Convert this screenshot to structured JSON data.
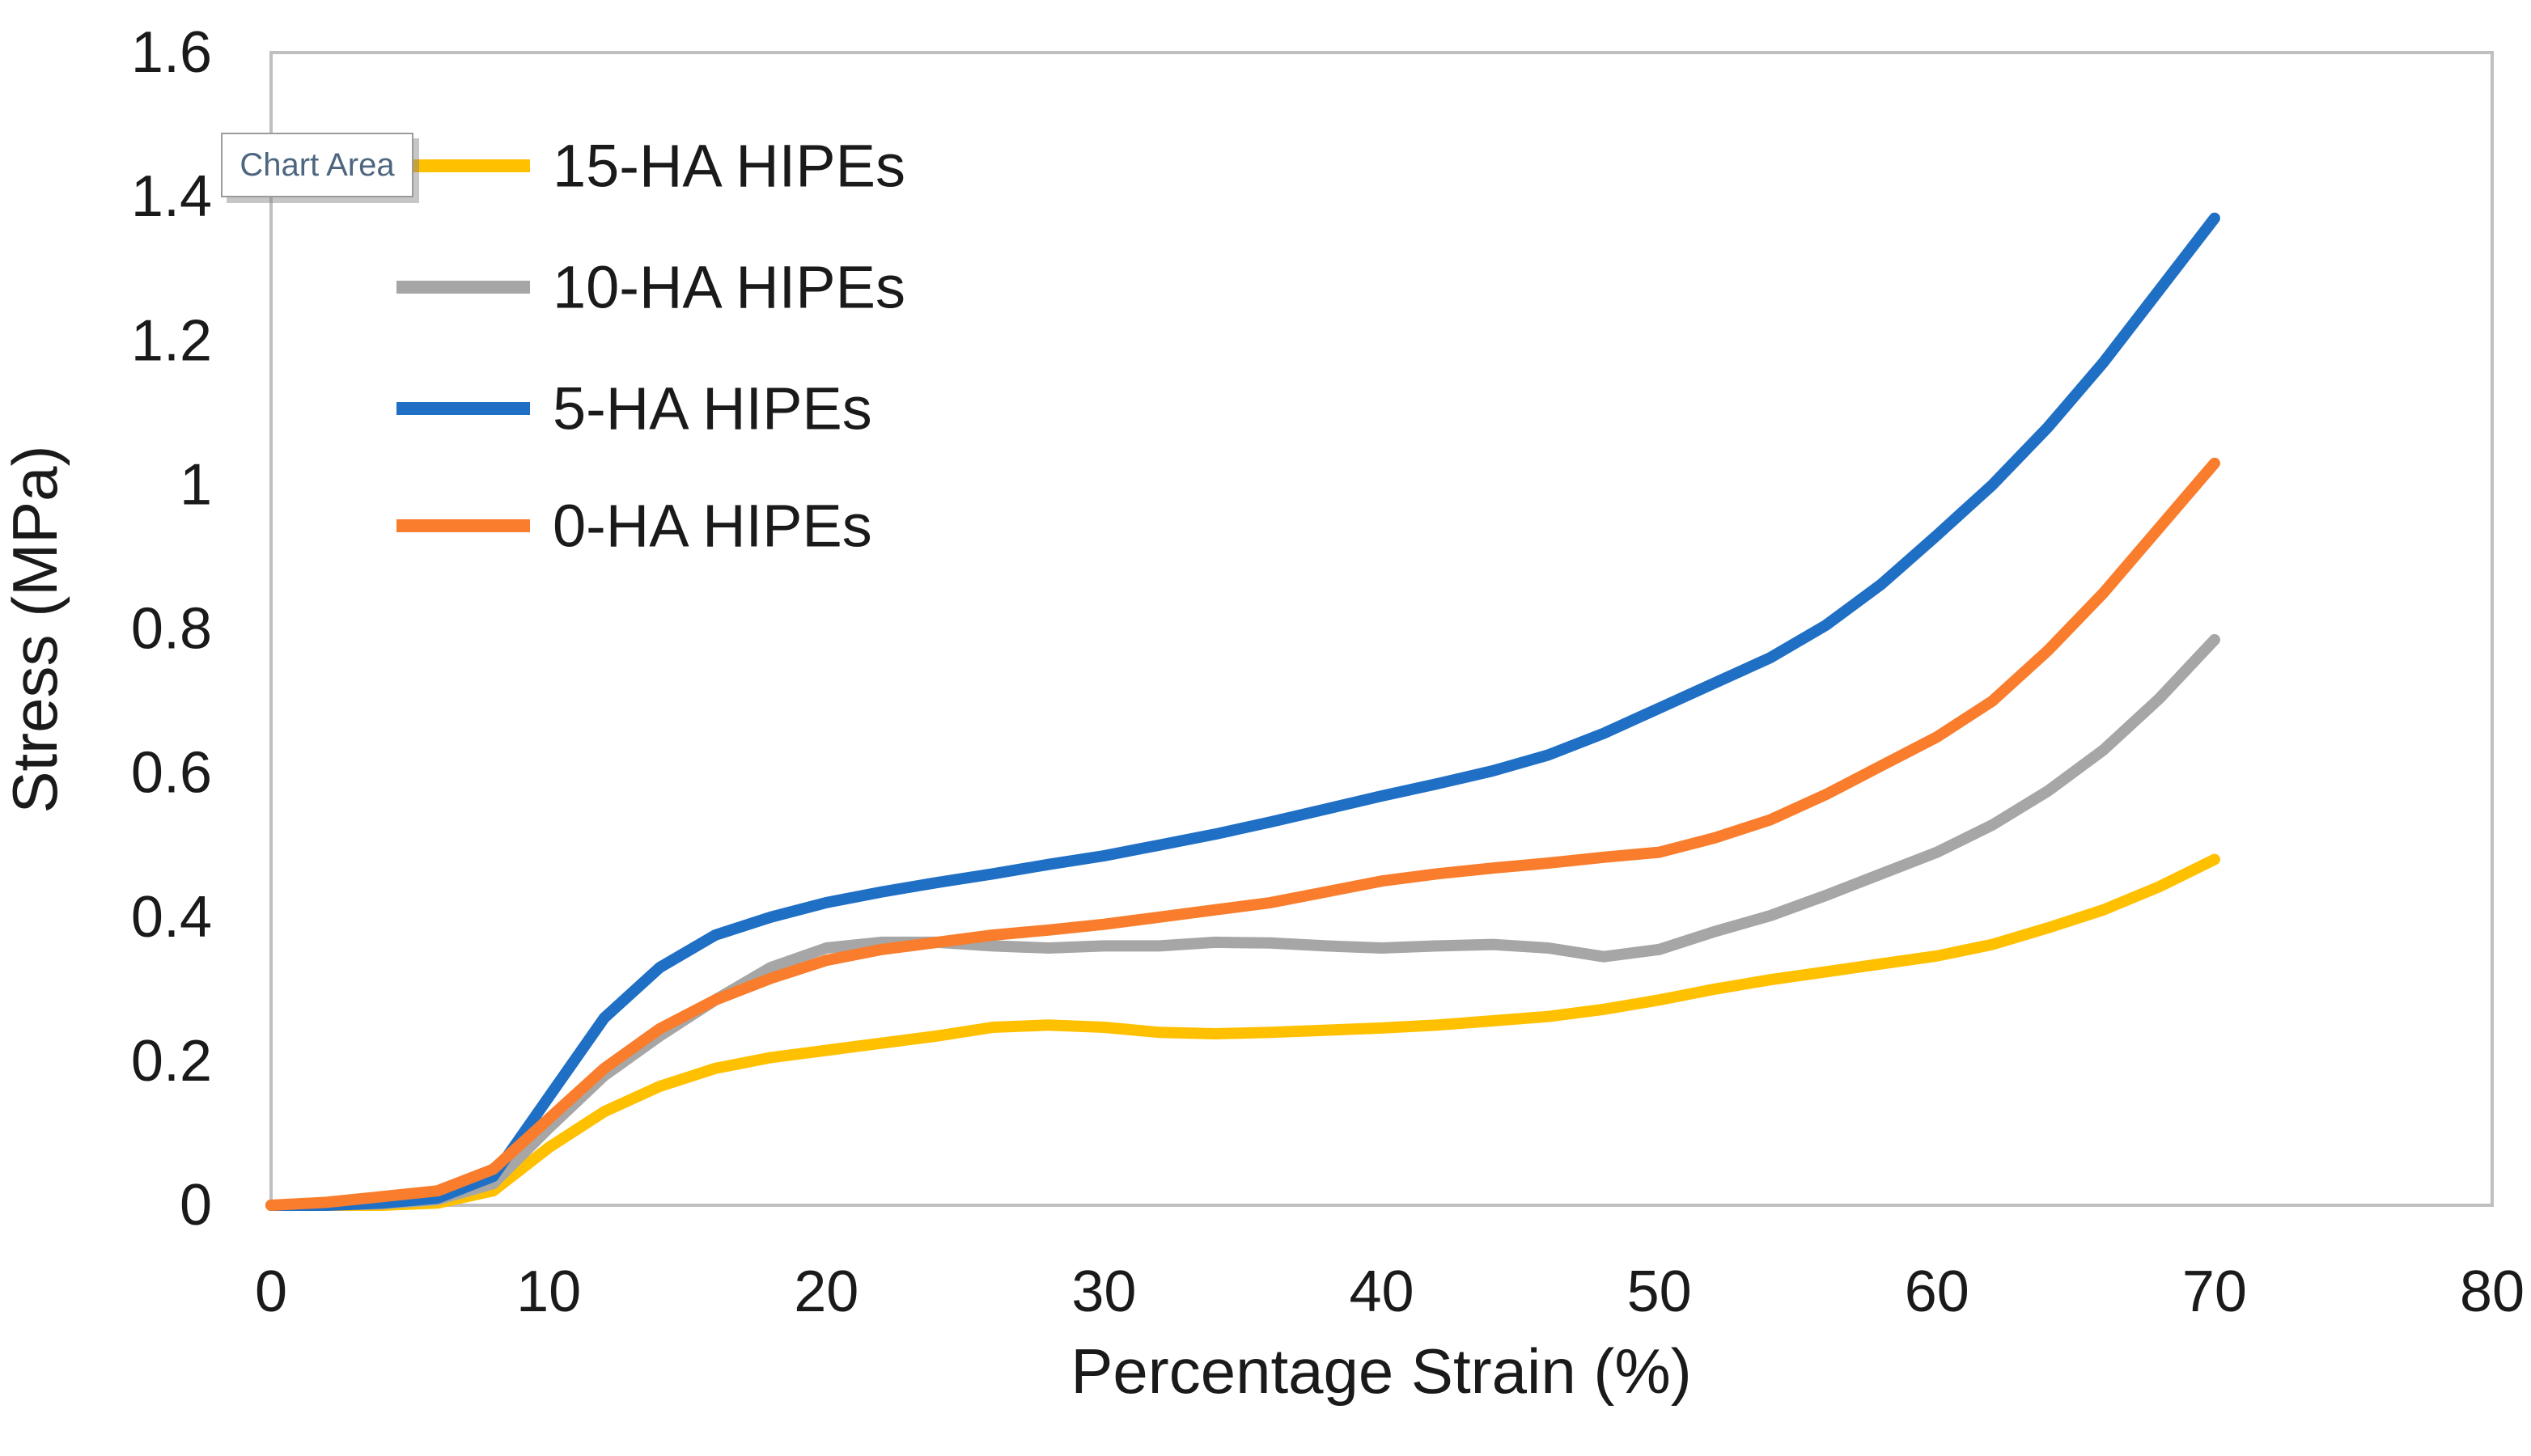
{
  "tooltip": {
    "label": "Chart Area"
  },
  "colors": {
    "frame": "#bfbfbf",
    "axis_text": "#1a1a1a",
    "tooltip_text": "#4d6680",
    "yellow": "#FFC000",
    "gray": "#A6A6A6",
    "blue": "#1F6FC5",
    "orange": "#F97D2C"
  },
  "chart_data": {
    "type": "line",
    "title": "",
    "xlabel": "Percentage Strain (%)",
    "ylabel": "Stress (MPa)",
    "xlim": [
      0,
      80
    ],
    "ylim": [
      0,
      1.6
    ],
    "xticks": [
      0,
      10,
      20,
      30,
      40,
      50,
      60,
      70,
      80
    ],
    "yticks": [
      0,
      0.2,
      0.4,
      0.6,
      0.8,
      1,
      1.2,
      1.4,
      1.6
    ],
    "grid": false,
    "legend_position": "top-left-inside",
    "x": [
      0,
      2,
      4,
      6,
      8,
      10,
      12,
      14,
      16,
      18,
      20,
      22,
      24,
      26,
      28,
      30,
      32,
      34,
      36,
      38,
      40,
      42,
      44,
      46,
      48,
      50,
      52,
      54,
      56,
      58,
      60,
      62,
      64,
      66,
      68,
      70
    ],
    "series": [
      {
        "name": "15-HA HIPEs",
        "color": "#FFC000",
        "values": [
          0,
          0,
          0,
          0.003,
          0.02,
          0.08,
          0.13,
          0.165,
          0.19,
          0.205,
          0.215,
          0.225,
          0.235,
          0.247,
          0.25,
          0.247,
          0.24,
          0.238,
          0.24,
          0.243,
          0.246,
          0.25,
          0.256,
          0.262,
          0.272,
          0.285,
          0.3,
          0.313,
          0.324,
          0.335,
          0.346,
          0.362,
          0.385,
          0.41,
          0.442,
          0.48
        ]
      },
      {
        "name": "10-HA HIPEs",
        "color": "#A6A6A6",
        "values": [
          0,
          0,
          0.002,
          0.008,
          0.03,
          0.107,
          0.18,
          0.235,
          0.285,
          0.33,
          0.357,
          0.365,
          0.365,
          0.36,
          0.357,
          0.36,
          0.36,
          0.365,
          0.364,
          0.36,
          0.357,
          0.36,
          0.362,
          0.357,
          0.345,
          0.355,
          0.38,
          0.402,
          0.43,
          0.46,
          0.49,
          0.528,
          0.575,
          0.632,
          0.703,
          0.785
        ]
      },
      {
        "name": "5-HA HIPEs",
        "color": "#1F6FC5",
        "values": [
          0,
          0,
          0.003,
          0.01,
          0.04,
          0.15,
          0.26,
          0.33,
          0.375,
          0.4,
          0.42,
          0.435,
          0.448,
          0.46,
          0.473,
          0.485,
          0.5,
          0.515,
          0.532,
          0.55,
          0.568,
          0.585,
          0.603,
          0.625,
          0.655,
          0.69,
          0.725,
          0.76,
          0.805,
          0.862,
          0.93,
          1.0,
          1.08,
          1.17,
          1.27,
          1.37
        ]
      },
      {
        "name": "0-HA HIPEs",
        "color": "#F97D2C",
        "values": [
          0,
          0.004,
          0.012,
          0.02,
          0.05,
          0.12,
          0.19,
          0.245,
          0.285,
          0.315,
          0.34,
          0.355,
          0.365,
          0.375,
          0.382,
          0.39,
          0.4,
          0.41,
          0.42,
          0.435,
          0.45,
          0.46,
          0.468,
          0.475,
          0.483,
          0.49,
          0.51,
          0.535,
          0.57,
          0.61,
          0.65,
          0.7,
          0.77,
          0.85,
          0.94,
          1.03
        ]
      }
    ],
    "legend_entries": [
      "15-HA HIPEs",
      "10-HA HIPEs",
      "5-HA HIPEs",
      "0-HA HIPEs"
    ]
  }
}
